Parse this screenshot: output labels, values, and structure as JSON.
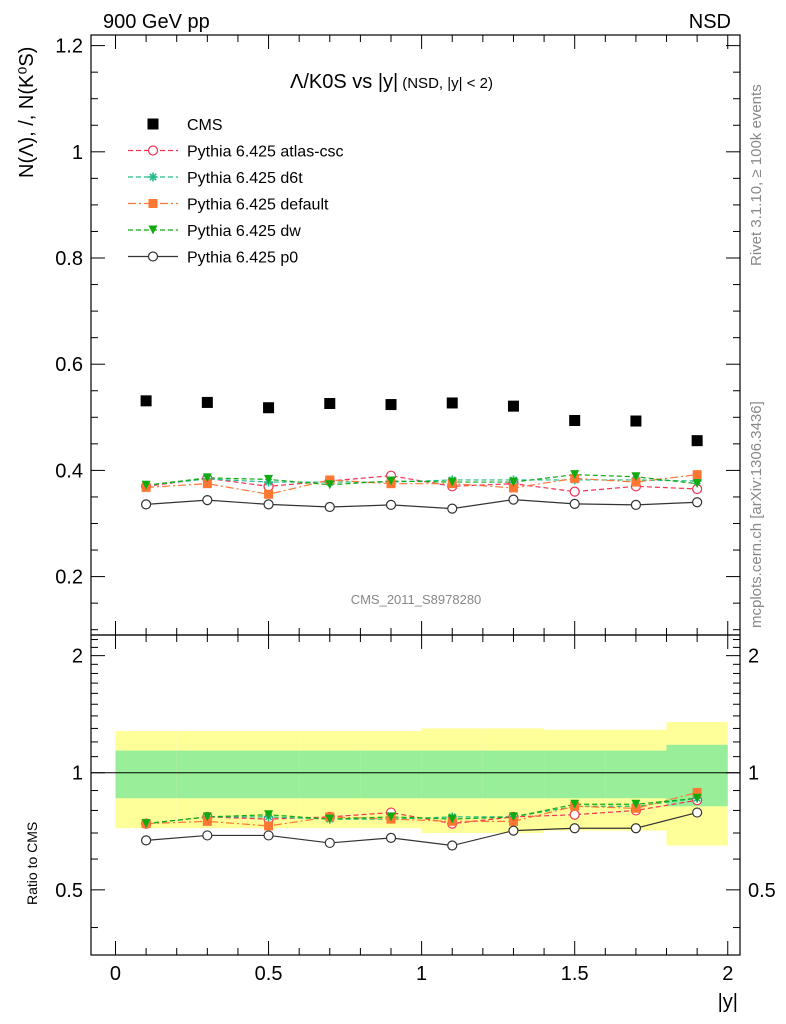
{
  "header": {
    "left": "900 GeV pp",
    "right": "NSD"
  },
  "side_texts": {
    "rivet": "Rivet 3.1.10, ≥ 100k events",
    "mcplots": "mcplots.cern.ch [arXiv:1306.3436]"
  },
  "chart_data": {
    "type": "scatter",
    "title_main": "Λ/K0S vs |y|",
    "title_sub": "(NSD, |y| < 2)",
    "ylabel": "N(Λ), /, N(K⁰S)",
    "xlabel": "|y|",
    "ratio_ylabel": "Ratio to CMS",
    "watermark": "CMS_2011_S8978280",
    "xlim": [
      -0.08,
      2.04
    ],
    "ylim": [
      0.09,
      1.22
    ],
    "ratio_ylim": [
      0.34,
      2.26
    ],
    "x_ticks": [
      "0",
      "0.5",
      "1",
      "1.5",
      "2"
    ],
    "y_ticks": [
      "0.2",
      "0.4",
      "0.6",
      "0.8",
      "1",
      "1.2"
    ],
    "ratio_y_ticks": [
      "0.5",
      "1",
      "2"
    ],
    "x": [
      0.1,
      0.3,
      0.5,
      0.7,
      0.9,
      1.1,
      1.3,
      1.5,
      1.7,
      1.9
    ],
    "series": [
      {
        "name": "CMS",
        "style": "data",
        "color": "#000000",
        "values": [
          0.531,
          0.528,
          0.518,
          0.526,
          0.524,
          0.527,
          0.521,
          0.494,
          0.493,
          0.456
        ]
      },
      {
        "name": "Pythia 6.425 atlas-csc",
        "style": "open-circle-dashed",
        "color": "#ee3355",
        "values": [
          0.37,
          0.385,
          0.37,
          0.38,
          0.39,
          0.37,
          0.375,
          0.36,
          0.37,
          0.365
        ]
      },
      {
        "name": "Pythia 6.425 d6t",
        "style": "star-dashed",
        "color": "#22bb88",
        "values": [
          0.372,
          0.384,
          0.378,
          0.378,
          0.378,
          0.382,
          0.382,
          0.382,
          0.382,
          0.38
        ]
      },
      {
        "name": "Pythia 6.425 default",
        "style": "square-dashdot",
        "color": "#ff7733",
        "values": [
          0.368,
          0.375,
          0.355,
          0.382,
          0.375,
          0.375,
          0.367,
          0.385,
          0.378,
          0.392
        ]
      },
      {
        "name": "Pythia 6.425 dw",
        "style": "triangle-dashed",
        "color": "#11aa11",
        "values": [
          0.372,
          0.386,
          0.383,
          0.373,
          0.38,
          0.378,
          0.378,
          0.392,
          0.388,
          0.375
        ]
      },
      {
        "name": "Pythia 6.425 p0",
        "style": "open-circle-solid",
        "color": "#333333",
        "values": [
          0.336,
          0.344,
          0.336,
          0.331,
          0.335,
          0.328,
          0.345,
          0.337,
          0.335,
          0.34
        ]
      }
    ],
    "ratio": {
      "bands": {
        "stat": [
          0.14,
          0.14,
          0.14,
          0.14,
          0.14,
          0.14,
          0.14,
          0.14,
          0.14,
          0.18
        ],
        "total": [
          0.28,
          0.28,
          0.28,
          0.28,
          0.28,
          0.3,
          0.3,
          0.29,
          0.29,
          0.35
        ]
      },
      "series": [
        {
          "name": "Pythia 6.425 atlas-csc",
          "values": [
            0.74,
            0.77,
            0.76,
            0.77,
            0.79,
            0.74,
            0.77,
            0.78,
            0.8,
            0.85
          ]
        },
        {
          "name": "Pythia 6.425 d6t",
          "values": [
            0.74,
            0.77,
            0.77,
            0.76,
            0.76,
            0.77,
            0.77,
            0.82,
            0.82,
            0.86
          ]
        },
        {
          "name": "Pythia 6.425 default",
          "values": [
            0.74,
            0.75,
            0.73,
            0.77,
            0.76,
            0.75,
            0.75,
            0.82,
            0.81,
            0.89
          ]
        },
        {
          "name": "Pythia 6.425 dw",
          "values": [
            0.74,
            0.77,
            0.78,
            0.76,
            0.77,
            0.76,
            0.77,
            0.83,
            0.83,
            0.86
          ]
        },
        {
          "name": "Pythia 6.425 p0",
          "values": [
            0.67,
            0.69,
            0.69,
            0.66,
            0.68,
            0.65,
            0.71,
            0.72,
            0.72,
            0.79
          ]
        }
      ]
    }
  }
}
